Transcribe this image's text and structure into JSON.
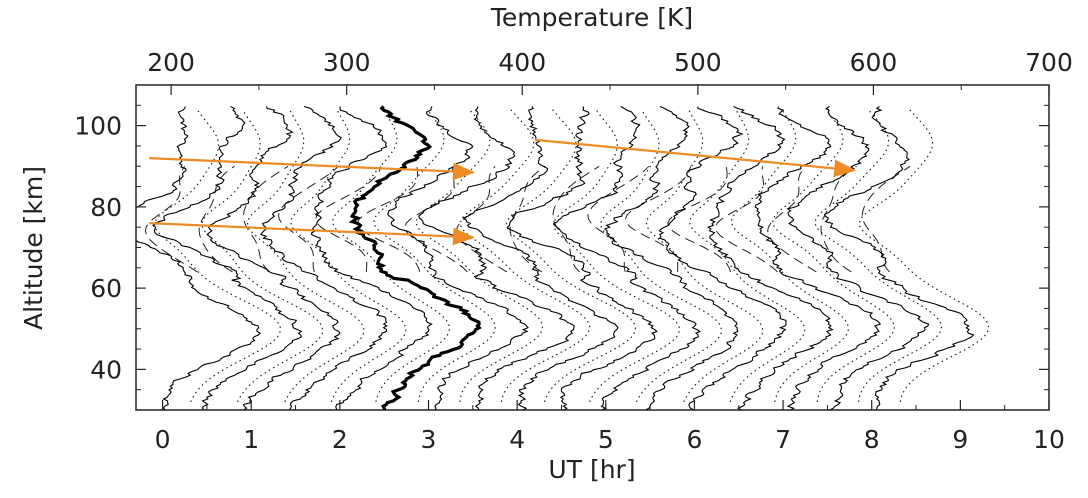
{
  "chart_data": {
    "type": "line",
    "title": "",
    "xlabel": "UT [hr]",
    "x2label": "Temperature [K]",
    "ylabel": "Altitude [km]",
    "xlim": [
      -0.3,
      10
    ],
    "x2lim": [
      180,
      700
    ],
    "ylim": [
      30,
      110
    ],
    "x_ticks": [
      0,
      1,
      2,
      3,
      4,
      5,
      6,
      7,
      8,
      9,
      10
    ],
    "x2_ticks": [
      200,
      300,
      400,
      500,
      600,
      700
    ],
    "y_ticks": [
      40,
      60,
      80,
      100
    ],
    "grid": false,
    "legend": "none",
    "profile_offsets_ut": [
      0,
      0.5,
      1.0,
      1.5,
      2.0,
      2.5,
      3.0,
      3.5,
      4.0,
      4.5,
      5.0,
      5.5,
      6.0,
      6.5,
      7.0,
      7.5,
      8.0
    ],
    "highlight_profile_ut": 2.5,
    "series": [
      {
        "style": "solid",
        "color": "#000000"
      },
      {
        "style": "dotted",
        "color": "#000000"
      },
      {
        "style": "dashed",
        "color": "#000000"
      },
      {
        "style": "thick-solid",
        "color": "#000000"
      }
    ],
    "arrows": [
      {
        "from": [
          -0.15,
          92
        ],
        "to": [
          3.5,
          88.5
        ],
        "color": "#f08a24"
      },
      {
        "from": [
          -0.15,
          76
        ],
        "to": [
          3.5,
          72.5
        ],
        "color": "#f08a24"
      },
      {
        "from": [
          4.2,
          96.5
        ],
        "to": [
          7.8,
          89
        ],
        "color": "#f08a24"
      }
    ]
  }
}
